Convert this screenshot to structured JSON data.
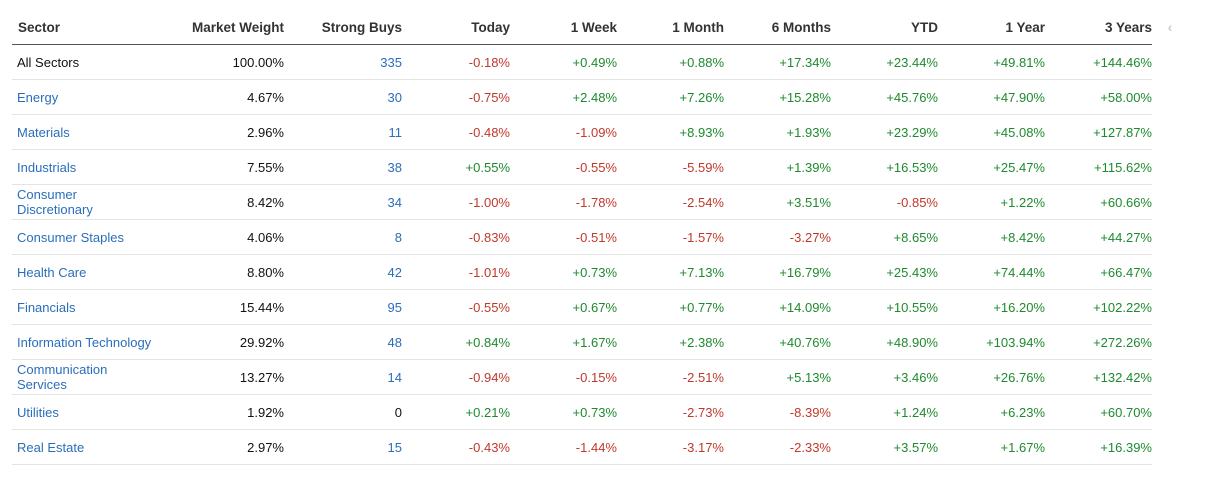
{
  "columns": {
    "sector": "Sector",
    "market_weight": "Market Weight",
    "strong_buys": "Strong Buys",
    "today": "Today",
    "week": "1 Week",
    "month": "1 Month",
    "six_months": "6 Months",
    "ytd": "YTD",
    "year": "1 Year",
    "three_years": "3 Years"
  },
  "scroll_arrow_icon": "chevron-left-icon",
  "scroll_arrow_glyph": "‹",
  "colors": {
    "positive": "#1e8a2e",
    "negative": "#c0392b",
    "link": "#2a6ebb"
  },
  "rows": [
    {
      "sector": "All Sectors",
      "weight": "100.00%",
      "buys": "335",
      "today": "-0.18%",
      "week": "+0.49%",
      "month": "+0.88%",
      "six_months": "+17.34%",
      "ytd": "+23.44%",
      "year": "+49.81%",
      "three_years": "+144.46%"
    },
    {
      "sector": "Energy",
      "weight": "4.67%",
      "buys": "30",
      "today": "-0.75%",
      "week": "+2.48%",
      "month": "+7.26%",
      "six_months": "+15.28%",
      "ytd": "+45.76%",
      "year": "+47.90%",
      "three_years": "+58.00%"
    },
    {
      "sector": "Materials",
      "weight": "2.96%",
      "buys": "11",
      "today": "-0.48%",
      "week": "-1.09%",
      "month": "+8.93%",
      "six_months": "+1.93%",
      "ytd": "+23.29%",
      "year": "+45.08%",
      "three_years": "+127.87%"
    },
    {
      "sector": "Industrials",
      "weight": "7.55%",
      "buys": "38",
      "today": "+0.55%",
      "week": "-0.55%",
      "month": "-5.59%",
      "six_months": "+1.39%",
      "ytd": "+16.53%",
      "year": "+25.47%",
      "three_years": "+115.62%"
    },
    {
      "sector": "Consumer Discretionary",
      "weight": "8.42%",
      "buys": "34",
      "today": "-1.00%",
      "week": "-1.78%",
      "month": "-2.54%",
      "six_months": "+3.51%",
      "ytd": "-0.85%",
      "year": "+1.22%",
      "three_years": "+60.66%"
    },
    {
      "sector": "Consumer Staples",
      "weight": "4.06%",
      "buys": "8",
      "today": "-0.83%",
      "week": "-0.51%",
      "month": "-1.57%",
      "six_months": "-3.27%",
      "ytd": "+8.65%",
      "year": "+8.42%",
      "three_years": "+44.27%"
    },
    {
      "sector": "Health Care",
      "weight": "8.80%",
      "buys": "42",
      "today": "-1.01%",
      "week": "+0.73%",
      "month": "+7.13%",
      "six_months": "+16.79%",
      "ytd": "+25.43%",
      "year": "+74.44%",
      "three_years": "+66.47%"
    },
    {
      "sector": "Financials",
      "weight": "15.44%",
      "buys": "95",
      "today": "-0.55%",
      "week": "+0.67%",
      "month": "+0.77%",
      "six_months": "+14.09%",
      "ytd": "+10.55%",
      "year": "+16.20%",
      "three_years": "+102.22%"
    },
    {
      "sector": "Information Technology",
      "weight": "29.92%",
      "buys": "48",
      "today": "+0.84%",
      "week": "+1.67%",
      "month": "+2.38%",
      "six_months": "+40.76%",
      "ytd": "+48.90%",
      "year": "+103.94%",
      "three_years": "+272.26%"
    },
    {
      "sector": "Communication Services",
      "weight": "13.27%",
      "buys": "14",
      "today": "-0.94%",
      "week": "-0.15%",
      "month": "-2.51%",
      "six_months": "+5.13%",
      "ytd": "+3.46%",
      "year": "+26.76%",
      "three_years": "+132.42%"
    },
    {
      "sector": "Utilities",
      "weight": "1.92%",
      "buys": "0",
      "today": "+0.21%",
      "week": "+0.73%",
      "month": "-2.73%",
      "six_months": "-8.39%",
      "ytd": "+1.24%",
      "year": "+6.23%",
      "three_years": "+60.70%"
    },
    {
      "sector": "Real Estate",
      "weight": "2.97%",
      "buys": "15",
      "today": "-0.43%",
      "week": "-1.44%",
      "month": "-3.17%",
      "six_months": "-2.33%",
      "ytd": "+3.57%",
      "year": "+1.67%",
      "three_years": "+16.39%"
    }
  ]
}
